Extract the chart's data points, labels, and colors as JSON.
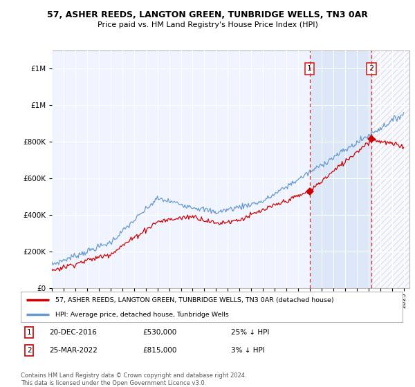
{
  "title": "57, ASHER REEDS, LANGTON GREEN, TUNBRIDGE WELLS, TN3 0AR",
  "subtitle": "Price paid vs. HM Land Registry's House Price Index (HPI)",
  "ylim": [
    0,
    1300000
  ],
  "yticks": [
    0,
    200000,
    400000,
    600000,
    800000,
    1000000,
    1200000
  ],
  "xlim_start": 1995,
  "xlim_end": 2025.5,
  "legend_line1": "57, ASHER REEDS, LANGTON GREEN, TUNBRIDGE WELLS, TN3 0AR (detached house)",
  "legend_line2": "HPI: Average price, detached house, Tunbridge Wells",
  "ann1_label": "1",
  "ann1_date": "20-DEC-2016",
  "ann1_price": "£530,000",
  "ann1_hpi": "25% ↓ HPI",
  "ann1_year": 2016.97,
  "ann1_value": 530000,
  "ann2_label": "2",
  "ann2_date": "25-MAR-2022",
  "ann2_price": "£815,000",
  "ann2_hpi": "3% ↓ HPI",
  "ann2_year": 2022.23,
  "ann2_value": 815000,
  "hpi_color": "#6699cc",
  "price_color": "#cc0000",
  "bg_color": "#f0f4ff",
  "shade_color": "#dce8f8",
  "vline_color": "#dd2222",
  "footer": "Contains HM Land Registry data © Crown copyright and database right 2024.\nThis data is licensed under the Open Government Licence v3.0."
}
